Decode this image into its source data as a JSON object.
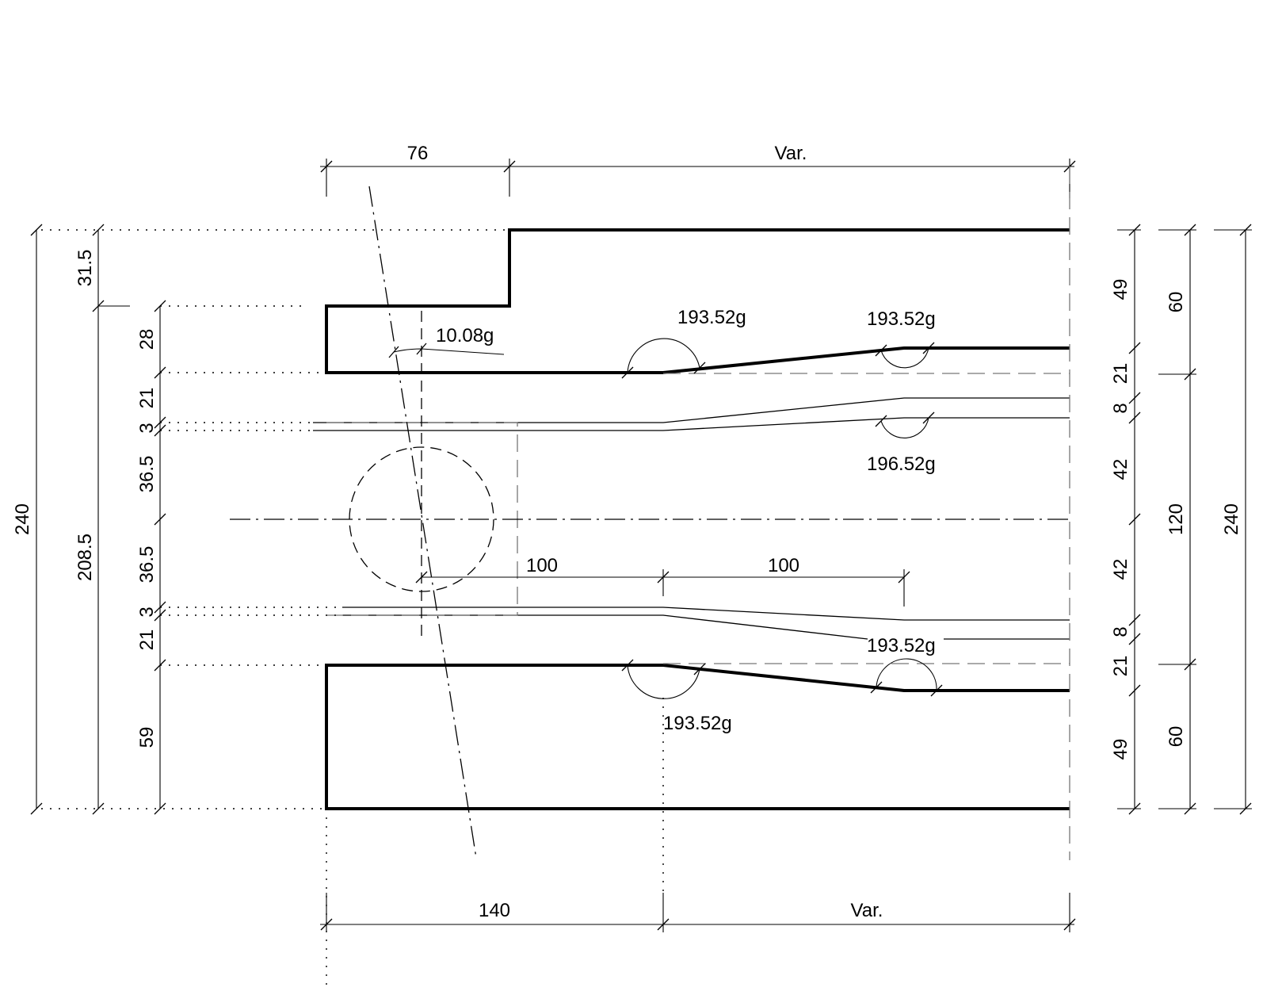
{
  "drawing": {
    "top_dims": {
      "left": "76",
      "right": "Var."
    },
    "bottom_dims": {
      "left": "140",
      "right": "Var."
    },
    "left_outer": {
      "total": "240",
      "upper": "31.5",
      "lower": "208.5"
    },
    "left_inner": [
      "28",
      "21",
      "3",
      "36.5",
      "36.5",
      "3",
      "21",
      "59"
    ],
    "right_inner": [
      "49",
      "21",
      "8",
      "42",
      "42",
      "8",
      "21",
      "49"
    ],
    "right_mid": [
      "60",
      "120",
      "60"
    ],
    "right_outer": "240",
    "angles": {
      "skew": "10.08g",
      "top_left": "193.52g",
      "top_right": "193.52g",
      "upper_inner": "196.52g",
      "lower_inner": "193.52g",
      "bottom": "193.52g"
    },
    "inner_dims": {
      "first": "100",
      "second": "100"
    }
  }
}
